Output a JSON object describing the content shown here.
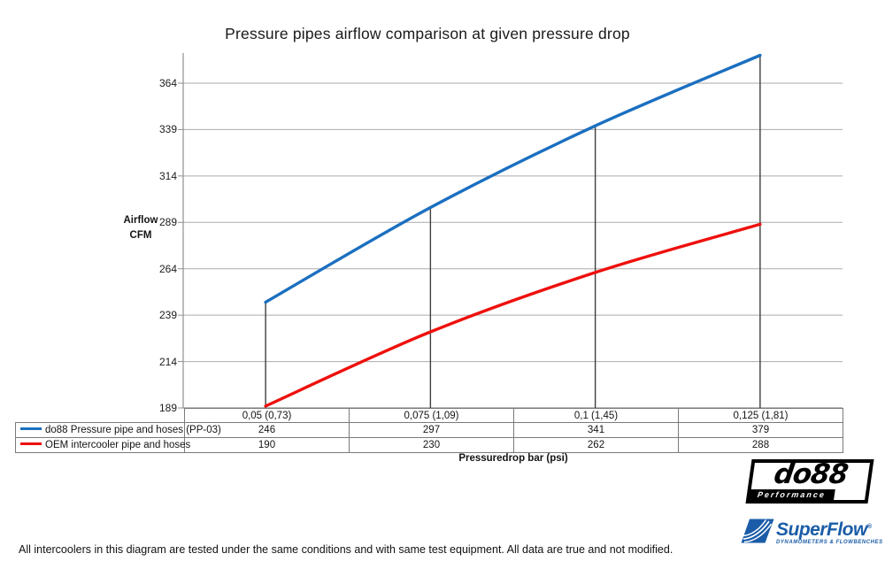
{
  "chart_data": {
    "type": "line",
    "title": "Pressure pipes airflow comparison at given pressure drop",
    "categories": [
      "0,05 (0,73)",
      "0,075 (1,09)",
      "0,1 (1,45)",
      "0,125 (1,81)"
    ],
    "series": [
      {
        "name": "do88 Pressure pipe and hoses (PP-03)",
        "color": "#1b6fc0",
        "values": [
          246,
          297,
          341,
          379
        ]
      },
      {
        "name": "OEM intercooler pipe and hoses",
        "color": "#ee100c",
        "values": [
          190,
          230,
          262,
          288
        ]
      }
    ],
    "xlabel": "Pressuredrop bar (psi)",
    "ylabel": "Airflow CFM",
    "ylabel_lines": [
      "Airflow",
      "CFM"
    ],
    "yticks": [
      189,
      214,
      239,
      264,
      289,
      314,
      339,
      364
    ],
    "ylim": [
      189,
      381
    ],
    "grid": true,
    "drop_lines": true,
    "smooth_lines": true,
    "legend_position": "table-left",
    "colors": {
      "grid": "#ababab",
      "axis": "#8f8f8f",
      "drop_line": "#3f3f3f",
      "table_border": "#7a7a7a"
    }
  },
  "footer": {
    "note": "All intercoolers in this diagram are tested under the same conditions and with same test equipment. All data are true and not modified."
  },
  "logos": {
    "do88": {
      "text": "do88",
      "subtext": "Performance"
    },
    "superflow": {
      "text": "SuperFlow",
      "trademark": "®",
      "subtext": "DYNAMOMETERS & FLOWBENCHES"
    }
  }
}
